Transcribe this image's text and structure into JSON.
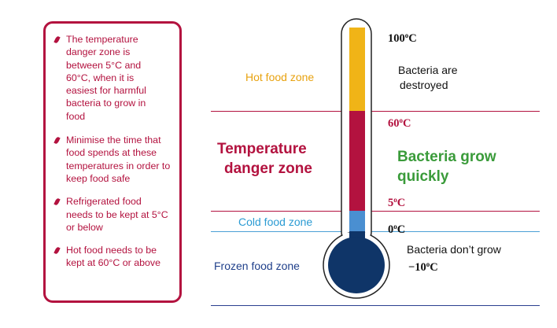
{
  "info_panel": {
    "bullets": [
      "The temperature danger zone is between 5°C and 60°C, when it is easiest for harmful bacteria to grow in food",
      "Minimise the time that food spends at these temperatures in order to keep food safe",
      "Refrigerated food needs to be kept at 5°C or below",
      "Hot food needs to be kept at 60°C or above"
    ]
  },
  "zones": {
    "hot": "Hot food zone",
    "danger_line1": "Temperature",
    "danger_line2": "danger zone",
    "cold": "Cold food zone",
    "frozen": "Frozen food zone"
  },
  "temperatures": {
    "t100": "100",
    "t60": "60",
    "t5": "5",
    "t0": "0",
    "tminus10": "−10",
    "degree_sup": "o",
    "unit": "C"
  },
  "notes": {
    "destroyed_line1": "Bacteria are",
    "destroyed_line2": "destroyed",
    "grow_line1": "Bacteria grow",
    "grow_line2": "quickly",
    "dont_grow": "Bacteria don’t grow"
  },
  "colors": {
    "hot_zone": "#f0b417",
    "danger_zone": "#b3123f",
    "cold_zone": "#4a8fd1",
    "frozen_zone": "#0f3568",
    "hot_label": "#e8a20f",
    "cold_label": "#2b9bd3",
    "frozen_label": "#1f3f8a",
    "grow_text": "#3a9b3a"
  }
}
